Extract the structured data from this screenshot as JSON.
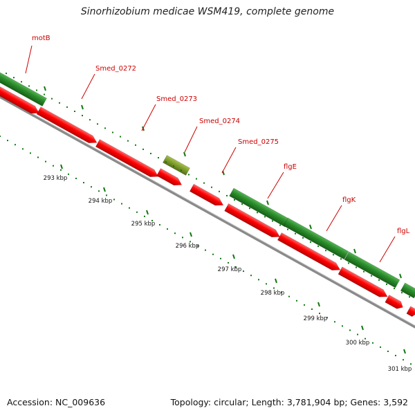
{
  "title": "Sinorhizobium medicae WSM419, complete genome",
  "footer": {
    "accession": "Accession: NC_009636",
    "summary": "Topology: circular; Length: 3,781,904 bp; Genes: 3,592"
  },
  "colors": {
    "gene_cds": "#ee0000",
    "gene_green": "#228822",
    "gene_olive": "#7a9a2a",
    "backbone": "#888888",
    "label": "#cc0000",
    "tick": "#116611"
  },
  "gene_labels": [
    "motB",
    "Smed_0272",
    "Smed_0273",
    "Smed_0274",
    "Smed_0275",
    "flgE",
    "flgK",
    "flgL"
  ],
  "tick_labels": [
    "293 kbp",
    "294 kbp",
    "295 kbp",
    "296 kbp",
    "297 kbp",
    "298 kbp",
    "299 kbp",
    "300 kbp",
    "301 kbp"
  ]
}
